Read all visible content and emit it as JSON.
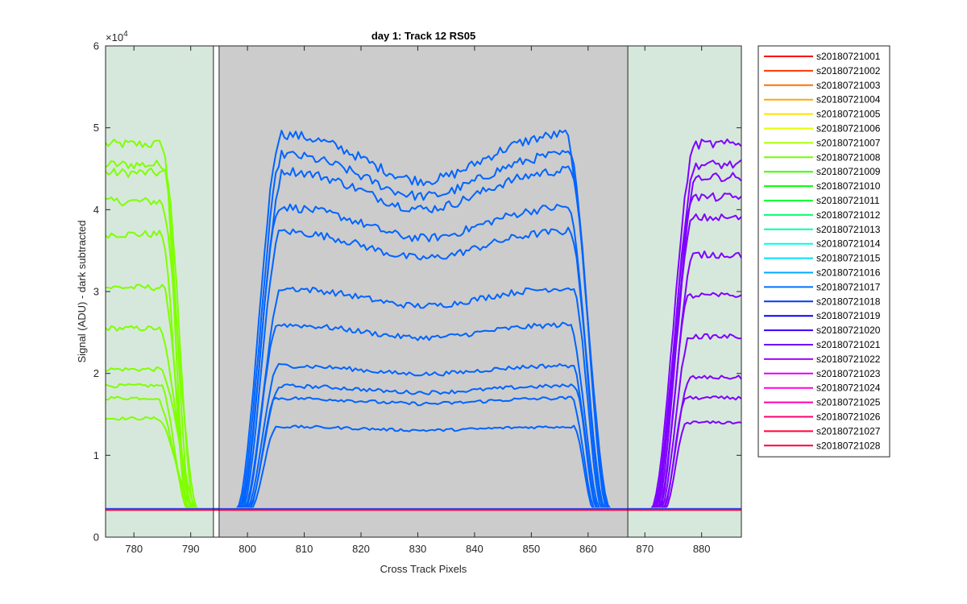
{
  "chart_data": {
    "type": "line",
    "title": "day 1: Track 12  RS05",
    "xlabel": "Cross Track Pixels",
    "ylabel": "Signal (ADU) - dark subtracted",
    "y_exponent_label": "×10",
    "y_exponent_power": "4",
    "xlim": [
      775,
      887
    ],
    "ylim": [
      0,
      60000
    ],
    "x_ticks": [
      780,
      790,
      800,
      810,
      820,
      830,
      840,
      850,
      860,
      870,
      880
    ],
    "y_ticks": [
      0,
      10000,
      20000,
      30000,
      40000,
      50000,
      60000
    ],
    "y_tick_labels": [
      "0",
      "1",
      "2",
      "3",
      "4",
      "5",
      "6"
    ],
    "grid": false,
    "legend_position": "outside-right",
    "background_regions": [
      {
        "x_range": [
          775,
          794
        ],
        "color": "#d6e8dc"
      },
      {
        "x_range": [
          795,
          867
        ],
        "color": "#cccccc"
      },
      {
        "x_range": [
          867,
          887
        ],
        "color": "#d6e8dc"
      }
    ],
    "vertical_lines": [
      794,
      795,
      867
    ],
    "baseline_level": 3400,
    "groups": [
      {
        "x_start": 775,
        "x_end": 794,
        "plateau_end": 785,
        "fall_end": 789.5,
        "color": "#7fff00",
        "levels": [
          48000,
          45500,
          44500,
          41000,
          37000,
          30500,
          25500,
          20500,
          18500,
          17000,
          14500
        ]
      },
      {
        "x_start": 795,
        "x_end": 867,
        "rise_start": 798,
        "rise_end": 806,
        "fall_start": 856,
        "fall_end": 864,
        "color": "#0064ff",
        "levels": [
          49500,
          47000,
          45000,
          40500,
          37500,
          30500,
          26000,
          21000,
          18500,
          17000,
          13500
        ]
      },
      {
        "x_start": 867,
        "x_end": 887,
        "rise_start": 871,
        "rise_end": 879,
        "color": "#7f00ff",
        "levels": [
          48000,
          45500,
          44000,
          41500,
          39000,
          34500,
          29500,
          24500,
          19500,
          17000,
          14000
        ]
      }
    ],
    "series": [
      {
        "name": "s20180721001",
        "color": "#ff0000"
      },
      {
        "name": "s20180721002",
        "color": "#ff3800"
      },
      {
        "name": "s20180721003",
        "color": "#ff7100"
      },
      {
        "name": "s20180721004",
        "color": "#ffaa00"
      },
      {
        "name": "s20180721005",
        "color": "#ffe200"
      },
      {
        "name": "s20180721006",
        "color": "#e2ff00"
      },
      {
        "name": "s20180721007",
        "color": "#aaff00"
      },
      {
        "name": "s20180721008",
        "color": "#71ff00"
      },
      {
        "name": "s20180721009",
        "color": "#38ff00"
      },
      {
        "name": "s20180721010",
        "color": "#00ff00"
      },
      {
        "name": "s20180721011",
        "color": "#00ff38"
      },
      {
        "name": "s20180721012",
        "color": "#00ff71"
      },
      {
        "name": "s20180721013",
        "color": "#00ffaa"
      },
      {
        "name": "s20180721014",
        "color": "#00ffe2"
      },
      {
        "name": "s20180721015",
        "color": "#00e2ff"
      },
      {
        "name": "s20180721016",
        "color": "#00aaff"
      },
      {
        "name": "s20180721017",
        "color": "#0071ff"
      },
      {
        "name": "s20180721018",
        "color": "#0038ff"
      },
      {
        "name": "s20180721019",
        "color": "#0000ff"
      },
      {
        "name": "s20180721020",
        "color": "#3800ff"
      },
      {
        "name": "s20180721021",
        "color": "#7100ff"
      },
      {
        "name": "s20180721022",
        "color": "#aa00ff"
      },
      {
        "name": "s20180721023",
        "color": "#e200ff"
      },
      {
        "name": "s20180721024",
        "color": "#ff00e2"
      },
      {
        "name": "s20180721025",
        "color": "#ff00aa"
      },
      {
        "name": "s20180721026",
        "color": "#ff0071"
      },
      {
        "name": "s20180721027",
        "color": "#ff0038"
      },
      {
        "name": "s20180721028",
        "color": "#ff0040"
      }
    ]
  }
}
